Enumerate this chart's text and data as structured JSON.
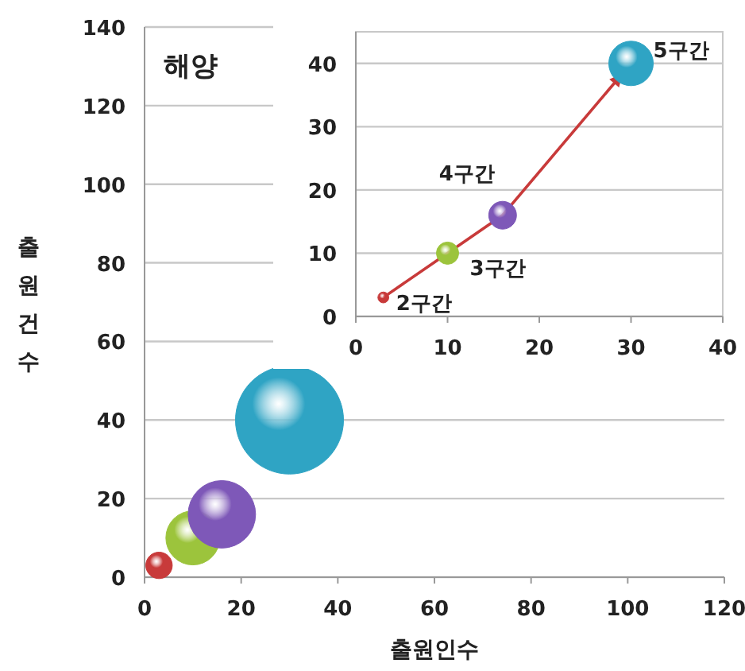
{
  "chart_data": [
    {
      "type": "bubble",
      "title": "해양",
      "xlabel": "출원인수",
      "ylabel": "출원건수",
      "x": [
        3,
        10,
        16,
        30
      ],
      "values": [
        3,
        10,
        16,
        40
      ],
      "sizes": [
        0.06,
        0.25,
        0.39,
        1
      ],
      "colors": [
        "#c83a3a",
        "#9cc43c",
        "#7e58b8",
        "#2fa4c4"
      ],
      "xlim": [
        0,
        120
      ],
      "xticks": [
        0,
        20,
        40,
        60,
        80,
        100,
        120
      ],
      "ylim": [
        0,
        140
      ],
      "yticks": [
        0,
        20,
        40,
        60,
        80,
        100,
        120,
        140
      ],
      "grid": "y"
    },
    {
      "type": "bubble",
      "x": [
        3,
        10,
        16,
        30
      ],
      "values": [
        3,
        10,
        16,
        40
      ],
      "sizes": [
        0.06,
        0.25,
        0.39,
        1
      ],
      "colors": [
        "#c83a3a",
        "#9cc43c",
        "#7e58b8",
        "#2fa4c4"
      ],
      "xlim": [
        0,
        40
      ],
      "xticks": [
        0,
        10,
        20,
        30,
        40
      ],
      "ylim": [
        0,
        45
      ],
      "yticks": [
        0,
        10,
        20,
        30,
        40
      ],
      "grid": "y",
      "annotations": [
        {
          "text": "2구간",
          "x": 3,
          "y": 3
        },
        {
          "text": "3구간",
          "x": 10,
          "y": 10
        },
        {
          "text": "4구간",
          "x": 16,
          "y": 16
        },
        {
          "text": "5구간",
          "x": 30,
          "y": 40
        }
      ]
    }
  ]
}
